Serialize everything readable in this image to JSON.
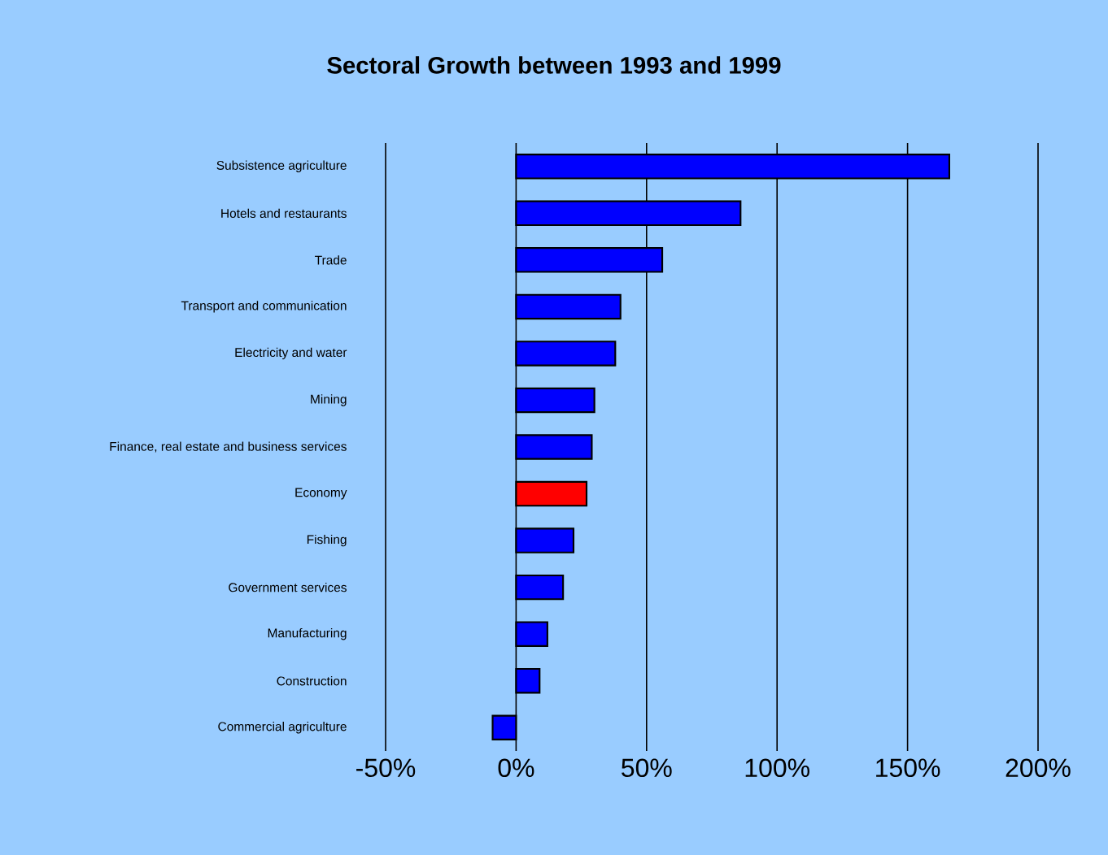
{
  "chart_data": {
    "type": "bar",
    "orientation": "horizontal",
    "title": "Sectoral Growth between 1993 and 1999",
    "categories": [
      "Subsistence agriculture",
      "Hotels and restaurants",
      "Trade",
      "Transport and communication",
      "Electricity and water",
      "Mining",
      "Finance, real estate and business services",
      "Economy",
      "Fishing",
      "Government services",
      "Manufacturing",
      "Construction",
      "Commercial agriculture"
    ],
    "values": [
      166,
      86,
      56,
      40,
      38,
      30,
      29,
      27,
      22,
      18,
      12,
      9,
      -9
    ],
    "colors": [
      "#0000ff",
      "#0000ff",
      "#0000ff",
      "#0000ff",
      "#0000ff",
      "#0000ff",
      "#0000ff",
      "#ff0000",
      "#0000ff",
      "#0000ff",
      "#0000ff",
      "#0000ff",
      "#0000ff"
    ],
    "xlim": [
      -50,
      200
    ],
    "xticks": [
      {
        "value": -50,
        "label": "-50%"
      },
      {
        "value": 0,
        "label": "0%"
      },
      {
        "value": 50,
        "label": "50%"
      },
      {
        "value": 100,
        "label": "100%"
      },
      {
        "value": 150,
        "label": "150%"
      },
      {
        "value": 200,
        "label": "200%"
      }
    ],
    "grid": "x"
  }
}
